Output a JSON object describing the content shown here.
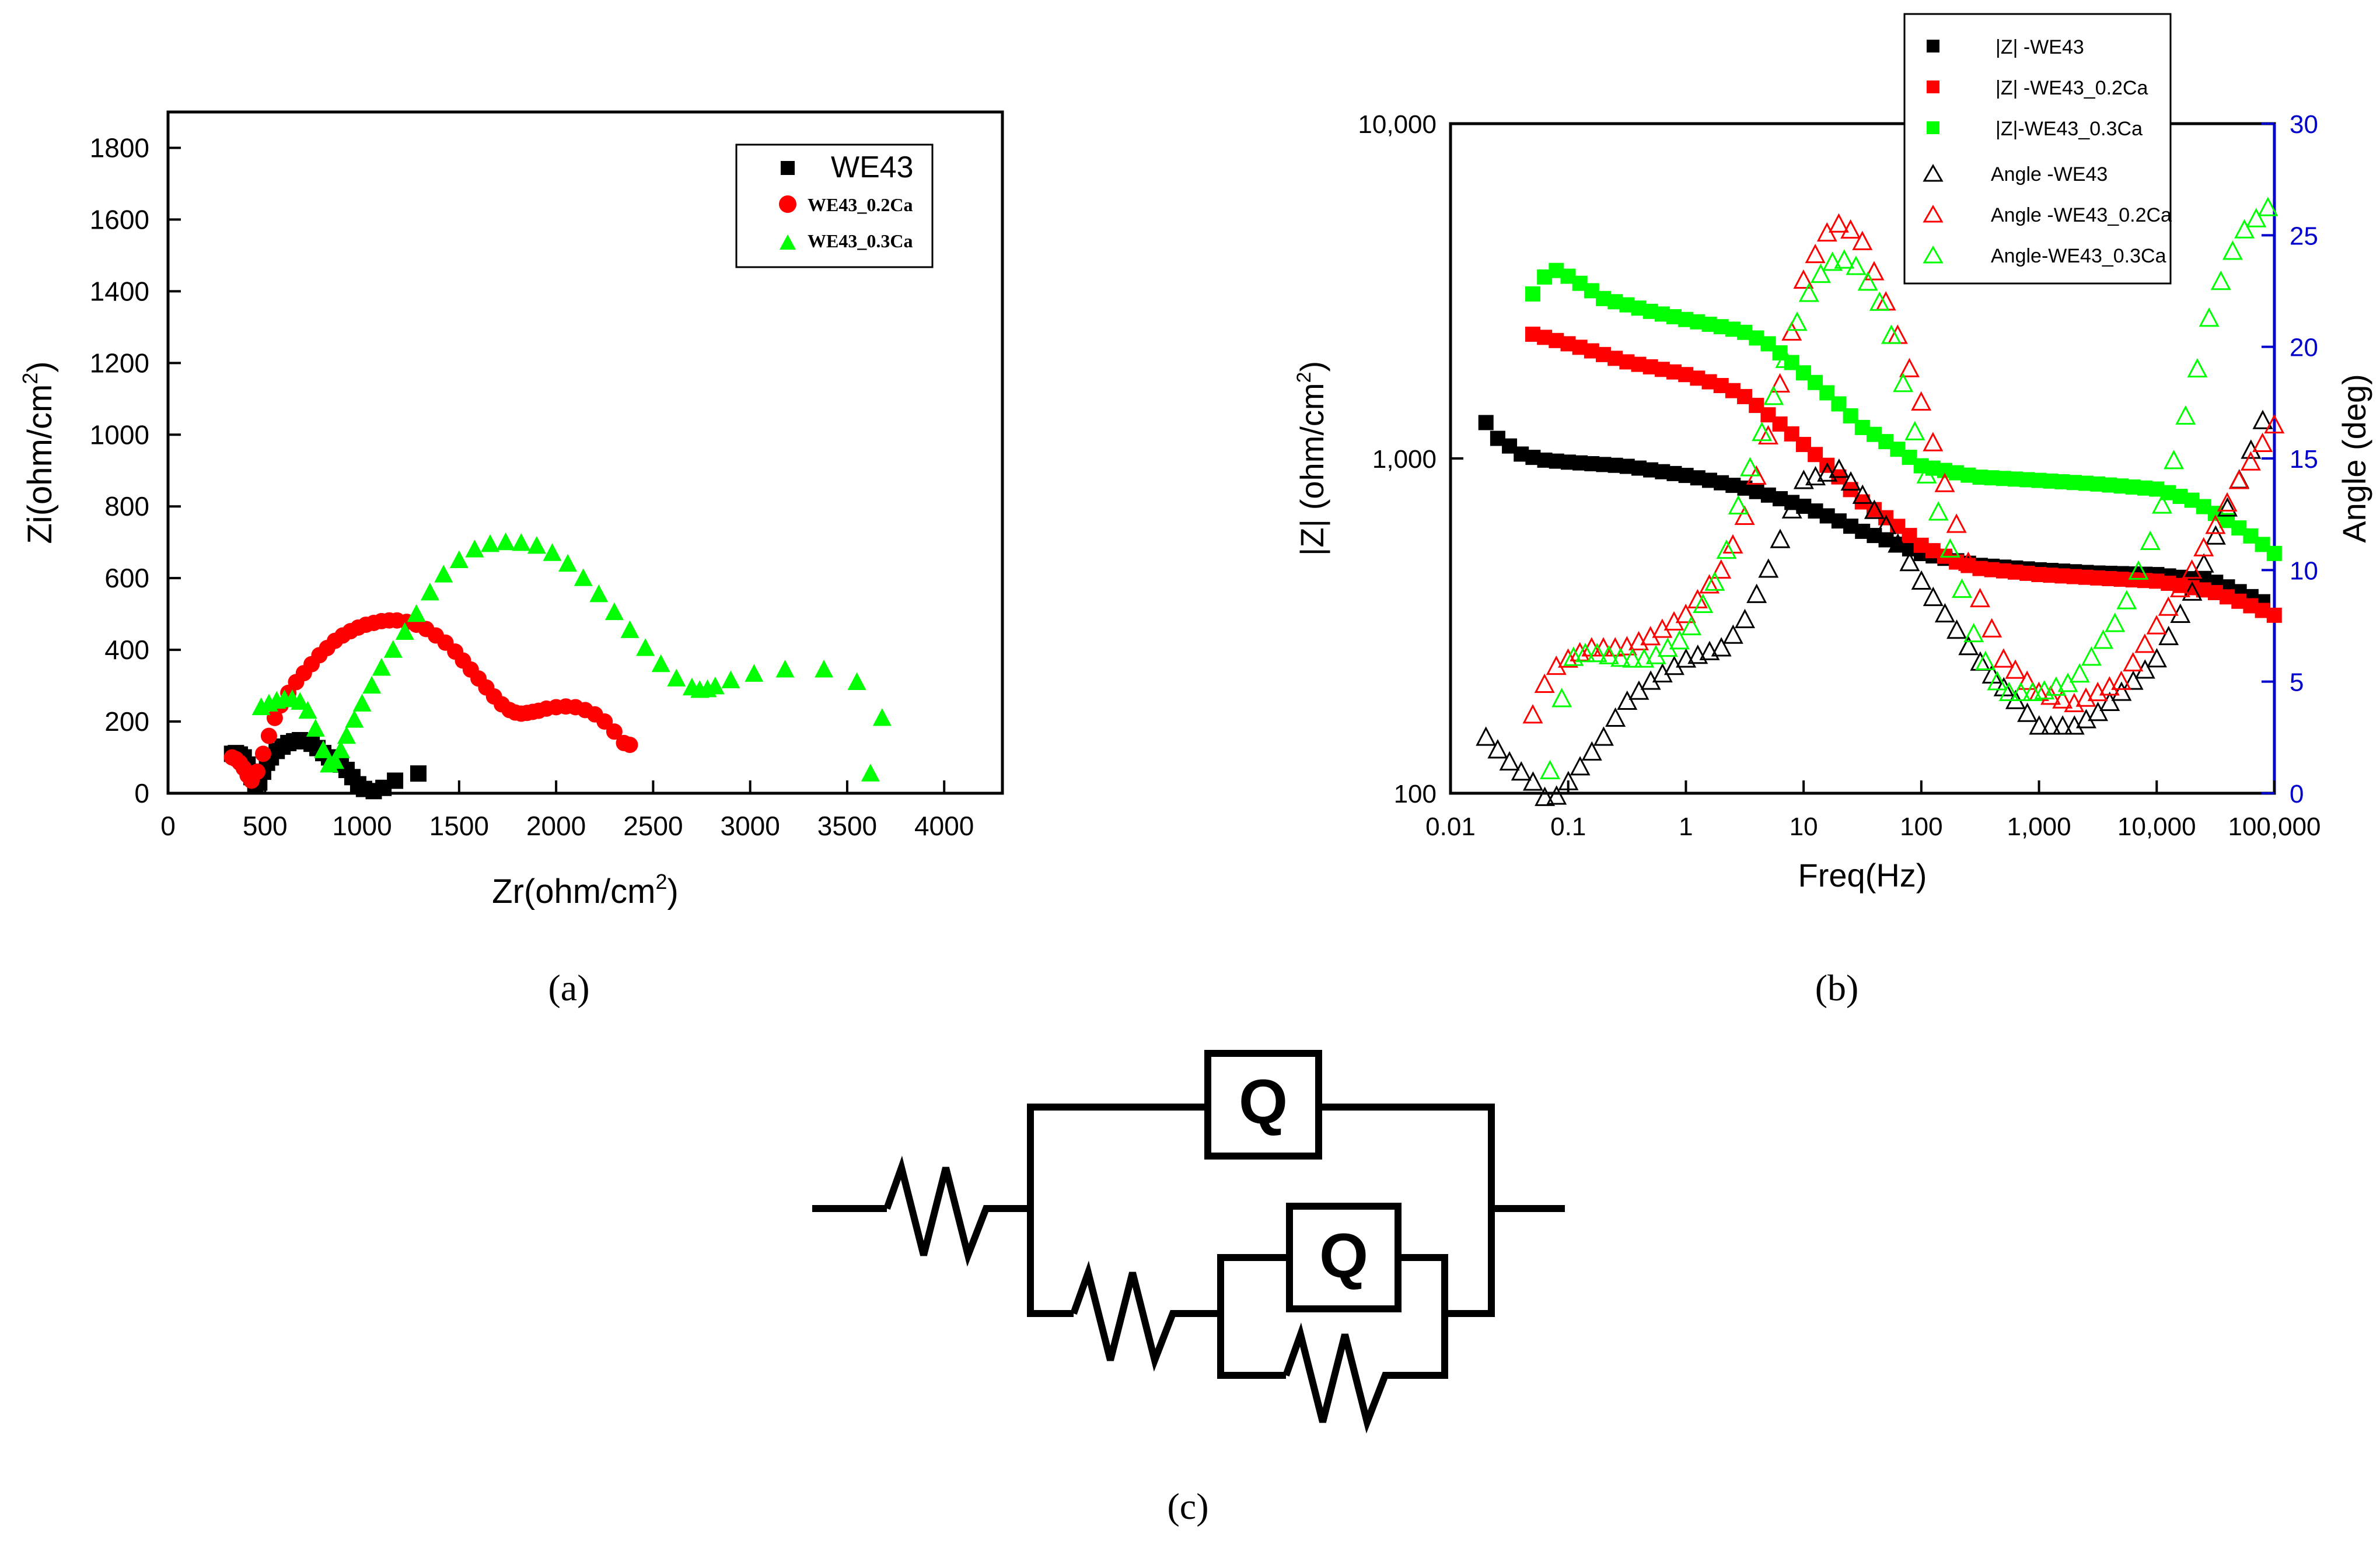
{
  "panel_labels": {
    "a": "(a)",
    "b": "(b)",
    "c": "(c)"
  },
  "colors": {
    "we43": "#000000",
    "ca02": "#ff0000",
    "ca03": "#00ff00",
    "right_axis": "#0000cc"
  },
  "chart_data": [
    {
      "id": "nyquist",
      "type": "scatter",
      "title": "",
      "xlabel": "Zr(ohm/cm",
      "xlabel_sup": "2",
      "xlabel_end": ")",
      "ylabel": "Zi(ohm/cm",
      "ylabel_sup": "2",
      "ylabel_end": ")",
      "xlim": [
        0,
        4300
      ],
      "ylim": [
        0,
        1900
      ],
      "xticks": [
        0,
        500,
        1000,
        1500,
        2000,
        2500,
        3000,
        3500,
        4000
      ],
      "xtick_labels": [
        "0",
        "500",
        "1000",
        "1500",
        "2000",
        "2500",
        "3000",
        "3500",
        "4000"
      ],
      "yticks": [
        0,
        200,
        400,
        600,
        800,
        1000,
        1200,
        1400,
        1600,
        1800
      ],
      "ytick_labels": [
        "0",
        "200",
        "400",
        "600",
        "800",
        "1000",
        "1200",
        "1400",
        "1600",
        "1800"
      ],
      "legend_position": "top-right",
      "series": [
        {
          "name": "WE43",
          "marker": "square",
          "color": "#000000",
          "x": [
            330,
            350,
            370,
            390,
            410,
            430,
            450,
            470,
            490,
            510,
            530,
            560,
            590,
            620,
            650,
            680,
            710,
            740,
            770,
            800,
            830,
            860,
            890,
            920,
            950,
            980,
            1010,
            1060,
            1110,
            1170,
            1290
          ],
          "y": [
            110,
            112,
            108,
            100,
            80,
            45,
            20,
            30,
            60,
            85,
            100,
            118,
            130,
            140,
            145,
            148,
            145,
            138,
            126,
            112,
            100,
            90,
            80,
            65,
            45,
            25,
            12,
            6,
            15,
            35,
            55
          ]
        },
        {
          "name": "WE43_0.2Ca",
          "marker": "circle",
          "color": "#ff0000",
          "x": [
            330,
            350,
            370,
            390,
            410,
            430,
            460,
            490,
            520,
            550,
            580,
            620,
            660,
            700,
            740,
            780,
            820,
            860,
            900,
            940,
            980,
            1020,
            1060,
            1100,
            1140,
            1180,
            1230,
            1280,
            1330,
            1380,
            1430,
            1480,
            1520,
            1560,
            1600,
            1640,
            1680,
            1720,
            1760,
            1790,
            1820,
            1850,
            1880,
            1910,
            1950,
            2000,
            2050,
            2100,
            2150,
            2200,
            2250,
            2300,
            2350,
            2380
          ],
          "y": [
            100,
            95,
            85,
            70,
            50,
            35,
            60,
            110,
            160,
            210,
            245,
            280,
            310,
            335,
            360,
            385,
            405,
            425,
            440,
            452,
            462,
            470,
            475,
            480,
            482,
            482,
            478,
            470,
            458,
            440,
            420,
            395,
            370,
            345,
            320,
            295,
            270,
            248,
            232,
            225,
            222,
            224,
            227,
            230,
            236,
            240,
            242,
            240,
            232,
            220,
            200,
            172,
            140,
            135
          ]
        },
        {
          "name": "WE43_0.3Ca",
          "marker": "triangle",
          "color": "#00ff00",
          "x": [
            480,
            520,
            560,
            600,
            640,
            680,
            720,
            760,
            800,
            830,
            860,
            890,
            920,
            960,
            1000,
            1050,
            1100,
            1160,
            1220,
            1280,
            1350,
            1420,
            1500,
            1580,
            1660,
            1740,
            1820,
            1900,
            1980,
            2060,
            2140,
            2220,
            2300,
            2380,
            2460,
            2540,
            2620,
            2700,
            2740,
            2780,
            2820,
            2900,
            3020,
            3180,
            3380,
            3550,
            3620,
            3680
          ],
          "y": [
            240,
            250,
            258,
            262,
            262,
            255,
            230,
            180,
            120,
            80,
            90,
            120,
            160,
            205,
            250,
            300,
            350,
            400,
            450,
            500,
            560,
            610,
            650,
            680,
            695,
            700,
            698,
            690,
            670,
            640,
            600,
            555,
            505,
            455,
            405,
            360,
            320,
            295,
            288,
            290,
            298,
            315,
            333,
            345,
            345,
            310,
            55,
            210
          ]
        }
      ]
    },
    {
      "id": "bode",
      "type": "scatter",
      "title": "",
      "xlabel": "Freq(Hz)",
      "ylabel": "|Z| (ohm/cm",
      "ylabel_sup": "2",
      "ylabel_end": ")",
      "y2label": "Angle (deg)",
      "xscale": "log",
      "yscale": "log",
      "xlim": [
        0.01,
        100000
      ],
      "ylim": [
        100,
        10000
      ],
      "y2lim": [
        0,
        30
      ],
      "xticks": [
        0.01,
        0.1,
        1,
        10,
        100,
        1000,
        10000,
        100000
      ],
      "xtick_labels": [
        "0.01",
        "0.1",
        "1",
        "10",
        "100",
        "1,000",
        "10,000",
        "100,000"
      ],
      "yticks": [
        100,
        1000,
        10000
      ],
      "ytick_labels": [
        "100",
        "1,000",
        "10,000"
      ],
      "y2ticks": [
        0,
        5,
        10,
        15,
        20,
        25,
        30
      ],
      "y2tick_labels": [
        "0",
        "5",
        "10",
        "15",
        "20",
        "25",
        "30"
      ],
      "legend_position": "top-right",
      "series": [
        {
          "name": "|Z| -WE43",
          "axis": "left",
          "marker": "square",
          "color": "#000000",
          "anchors_x": [
            0.02,
            0.025,
            0.04,
            0.06,
            0.1,
            0.3,
            1,
            3,
            10,
            30,
            100,
            300,
            1000,
            3000,
            10000,
            30000,
            100000
          ],
          "anchors_y": [
            1280,
            1150,
            1030,
            990,
            975,
            950,
            890,
            820,
            720,
            610,
            520,
            480,
            465,
            455,
            450,
            430,
            360
          ]
        },
        {
          "name": "|Z| -WE43_0.2Ca",
          "axis": "left",
          "marker": "square",
          "color": "#ff0000",
          "anchors_x": [
            0.05,
            0.1,
            0.3,
            1,
            2,
            3,
            5,
            10,
            30,
            100,
            200,
            300,
            1000,
            3000,
            10000,
            30000,
            100000
          ],
          "anchors_y": [
            2350,
            2200,
            1950,
            1780,
            1650,
            1550,
            1350,
            1100,
            750,
            550,
            490,
            470,
            450,
            440,
            430,
            400,
            340
          ]
        },
        {
          "name": "|Z|-WE43_0.3Ca",
          "axis": "left",
          "marker": "square",
          "color": "#00ff00",
          "anchors_x": [
            0.05,
            0.06,
            0.08,
            0.1,
            0.2,
            0.5,
            1,
            3,
            5,
            10,
            30,
            100,
            300,
            1000,
            3000,
            10000,
            20000,
            50000,
            100000
          ],
          "anchors_y": [
            3100,
            3450,
            3650,
            3500,
            3000,
            2750,
            2600,
            2400,
            2200,
            1800,
            1250,
            950,
            880,
            860,
            840,
            810,
            750,
            620,
            520
          ]
        },
        {
          "name": "Angle -WE43",
          "axis": "right",
          "marker": "open-triangle",
          "color": "#000000",
          "anchors_x": [
            0.02,
            0.03,
            0.05,
            0.07,
            0.1,
            0.2,
            0.3,
            0.5,
            1,
            2,
            3,
            5,
            10,
            20,
            30,
            50,
            100,
            300,
            1000,
            2000,
            3000,
            5000,
            10000,
            20000,
            50000,
            100000
          ],
          "anchors_y": [
            2.5,
            1.5,
            0.5,
            -0.5,
            0.5,
            2.5,
            4.0,
            5.0,
            6.0,
            6.5,
            7.5,
            10.0,
            14.0,
            14.5,
            13.5,
            12.0,
            9.5,
            6.0,
            3.0,
            3.0,
            3.5,
            4.5,
            6.0,
            9.0,
            14.0,
            18.0
          ]
        },
        {
          "name": "Angle -WE43_0.2Ca",
          "axis": "right",
          "marker": "open-triangle",
          "color": "#ff0000",
          "anchors_x": [
            0.05,
            0.07,
            0.1,
            0.15,
            0.2,
            0.3,
            0.5,
            1,
            2,
            3,
            5,
            10,
            15,
            20,
            30,
            50,
            100,
            200,
            300,
            500,
            1000,
            2000,
            5000,
            10000,
            20000,
            50000,
            100000
          ],
          "anchors_y": [
            3.5,
            5.5,
            6.0,
            6.5,
            6.5,
            6.5,
            7.0,
            8.0,
            10.0,
            12.0,
            16.0,
            23.0,
            25.0,
            25.5,
            25.0,
            22.0,
            17.5,
            12.0,
            9.0,
            6.0,
            4.5,
            4.0,
            5.0,
            7.5,
            10.0,
            14.0,
            16.5
          ]
        },
        {
          "name": "Angle-WE43_0.3Ca",
          "axis": "right",
          "marker": "open-triangle",
          "color": "#00ff00",
          "anchors_x": [
            0.07,
            0.1,
            0.15,
            0.2,
            0.3,
            0.5,
            1,
            2,
            3,
            5,
            10,
            15,
            20,
            30,
            50,
            100,
            200,
            300,
            500,
            1000,
            2000,
            5000,
            10000,
            20000,
            30000,
            50000,
            100000
          ],
          "anchors_y": [
            1.0,
            6.0,
            6.3,
            6.2,
            6.0,
            6.0,
            7.0,
            10.0,
            13.5,
            17.0,
            22.0,
            23.5,
            24.0,
            23.5,
            21.5,
            15.0,
            10.0,
            6.5,
            4.5,
            4.5,
            5.0,
            8.0,
            12.0,
            18.0,
            22.0,
            25.0,
            26.5
          ]
        }
      ]
    }
  ],
  "circuit": {
    "element_top": "Q",
    "element_inner": "Q"
  }
}
